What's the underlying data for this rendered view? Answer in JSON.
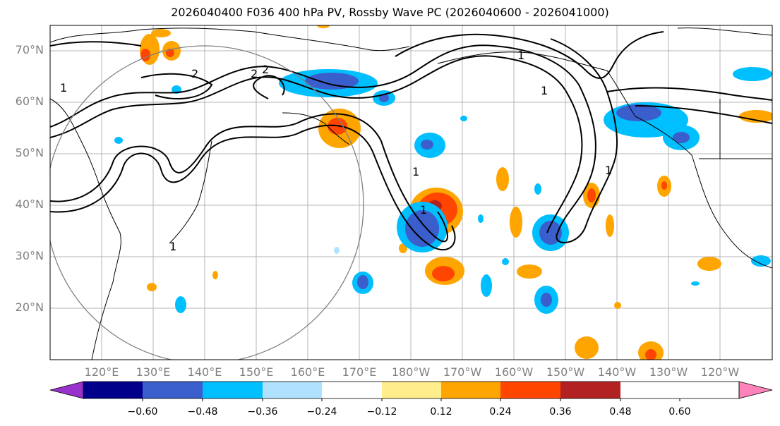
{
  "title": "2026040400 F036 400 hPa PV, Rossby Wave PC (2026040600 - 2026041000)",
  "lat_labels": [
    "70°N",
    "60°N",
    "50°N",
    "40°N",
    "30°N",
    "20°N"
  ],
  "lon_labels": [
    "120°E",
    "130°E",
    "140°E",
    "150°E",
    "160°E",
    "170°E",
    "180°W",
    "170°W",
    "160°W",
    "150°W",
    "140°W",
    "130°W",
    "120°W"
  ],
  "contour_labels": [
    "1",
    "2",
    "2",
    "2",
    "1",
    "1",
    "1",
    "1",
    "1",
    "1"
  ],
  "colorbar": {
    "ticks": [
      "−0.60",
      "−0.48",
      "−0.36",
      "−0.24",
      "−0.12",
      "0.12",
      "0.24",
      "0.36",
      "0.48",
      "0.60"
    ],
    "colors": [
      "#9932CC",
      "#00008B",
      "#3A5FCD",
      "#00BFFF",
      "#B0E2FF",
      "#FFFFFF",
      "#FFEC8B",
      "#FFA500",
      "#FF4500",
      "#B22222",
      "#FF83BB"
    ]
  }
}
